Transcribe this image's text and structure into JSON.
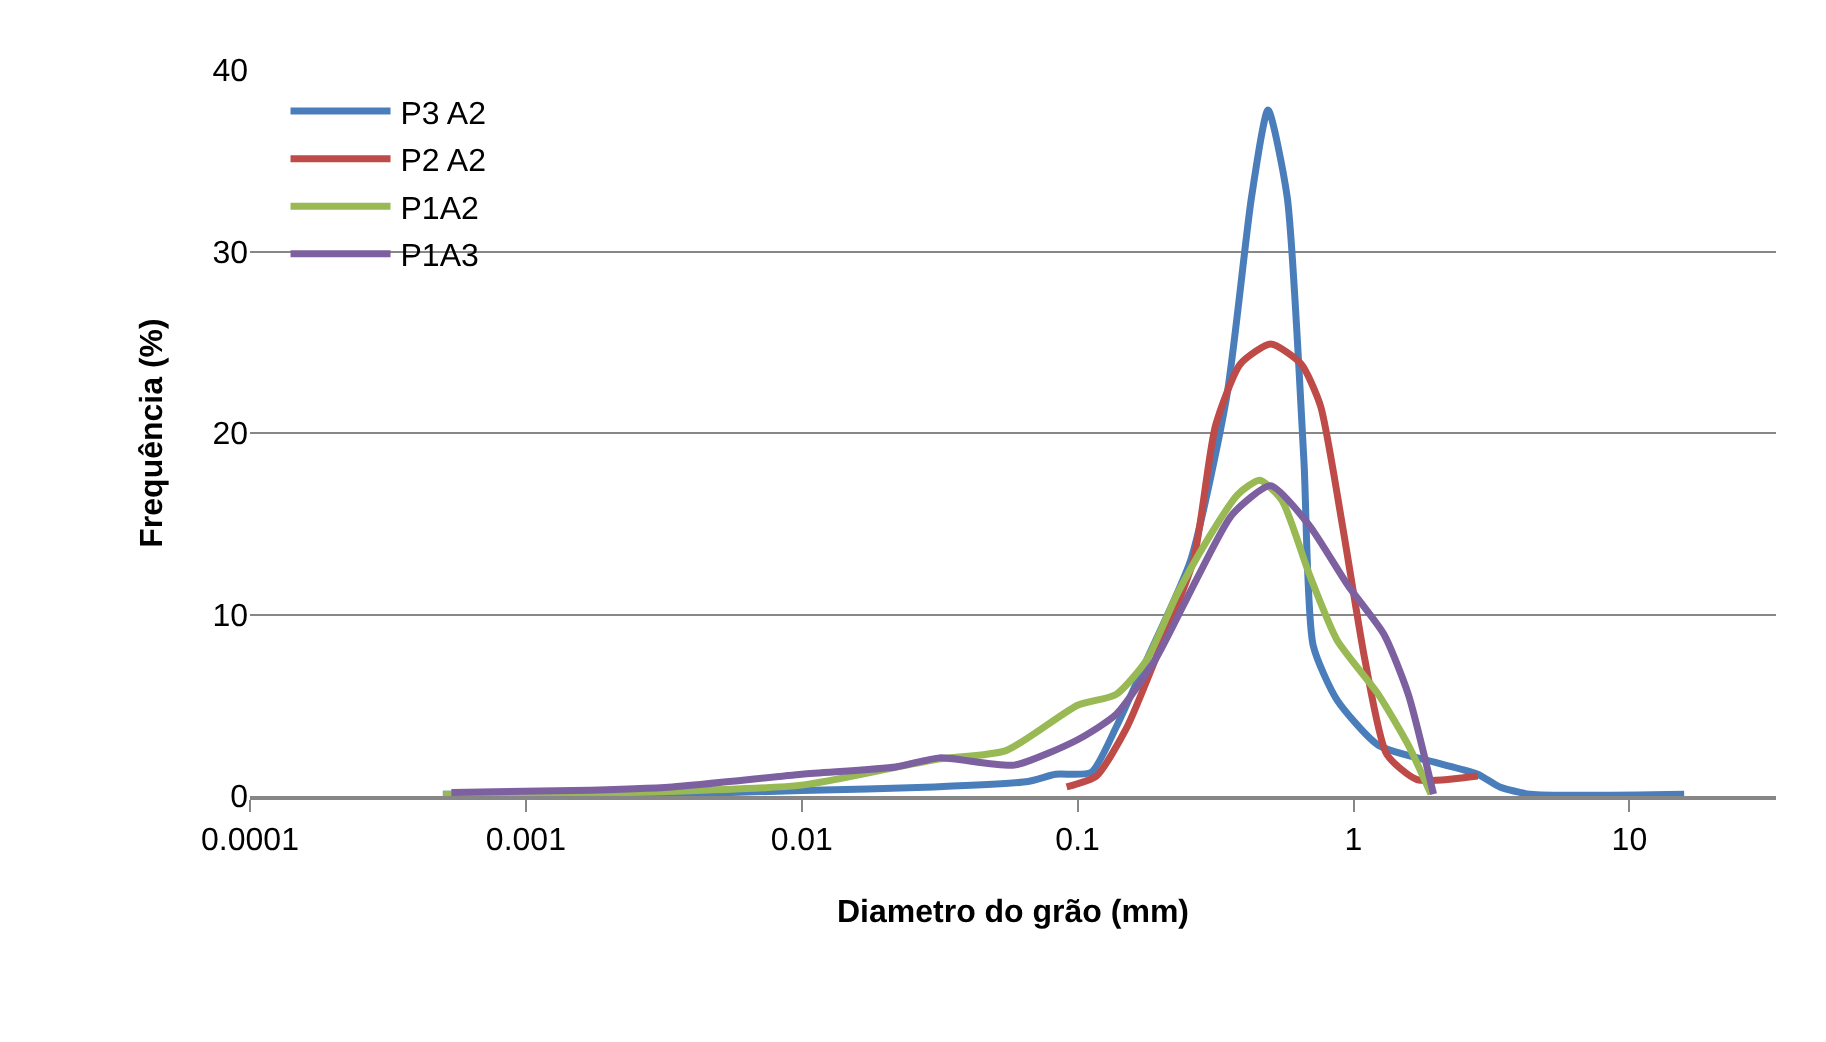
{
  "chart_data": {
    "type": "line",
    "xlabel": "Diametro do grão (mm)",
    "ylabel": "Frequência (%)",
    "log": "x",
    "grid": "y",
    "legend": "top left",
    "marker": "none",
    "line_style": "solid",
    "xlim": [
      0.0001,
      34
    ],
    "xticks": [
      0.0001,
      0.001,
      0.01,
      0.1,
      1,
      10
    ],
    "ylim": [
      0,
      40
    ],
    "yticks": [
      0,
      10,
      20,
      30,
      40
    ],
    "series": [
      {
        "name": "P3 A2",
        "color": "#4a7ebb",
        "x": [
          0.0005,
          0.000537,
          0.00302,
          0.01,
          0.0302,
          0.0661,
          0.0832,
          0.112,
          0.138,
          0.178,
          0.257,
          0.347,
          0.427,
          0.49,
          0.575,
          0.661,
          0.714,
          0.871,
          1.23,
          2.04,
          2.82,
          3.39,
          4.37,
          15.8
        ],
        "values": [
          0.1,
          0.1,
          0.1,
          0.3,
          0.5,
          0.8,
          1.2,
          1.3,
          3.8,
          7.5,
          13,
          22,
          33,
          37.8,
          33,
          18.5,
          8.3,
          5.3,
          2.8,
          1.8,
          1.2,
          0.5,
          0.1,
          0.1
        ]
      },
      {
        "name": "P2 A2",
        "color": "#be4b48",
        "x": [
          0.0912,
          0.117,
          0.151,
          0.191,
          0.263,
          0.316,
          0.389,
          0.501,
          0.646,
          0.759,
          0.912,
          1.1,
          1.32,
          1.7,
          2.82
        ],
        "values": [
          0.5,
          1.1,
          3.8,
          7.5,
          13,
          20.4,
          23.8,
          24.9,
          23.8,
          21.5,
          14.9,
          7.5,
          2.3,
          0.9,
          1.1
        ]
      },
      {
        "name": "P1A2",
        "color": "#98b954",
        "x": [
          0.000501,
          0.00126,
          0.01,
          0.0302,
          0.055,
          0.1,
          0.138,
          0.178,
          0.229,
          0.295,
          0.38,
          0.457,
          0.55,
          0.692,
          0.871,
          1.23,
          1.58,
          1.91
        ],
        "values": [
          0.1,
          0.1,
          0.6,
          2.0,
          2.5,
          5.0,
          5.6,
          7.5,
          11.1,
          14.1,
          16.6,
          17.4,
          16.3,
          12.2,
          8.6,
          5.6,
          2.8,
          0.1
        ]
      },
      {
        "name": "P1A3",
        "color": "#7d60a0",
        "x": [
          0.000537,
          0.00148,
          0.00339,
          0.01,
          0.0219,
          0.0316,
          0.0589,
          0.1,
          0.138,
          0.191,
          0.269,
          0.363,
          0.501,
          0.692,
          0.955,
          1.29,
          1.58,
          1.95
        ],
        "values": [
          0.2,
          0.3,
          0.5,
          1.2,
          1.6,
          2.1,
          1.7,
          3.1,
          4.5,
          7.5,
          11.9,
          15.5,
          17.1,
          14.9,
          11.6,
          8.9,
          5.6,
          0.1
        ]
      }
    ]
  }
}
